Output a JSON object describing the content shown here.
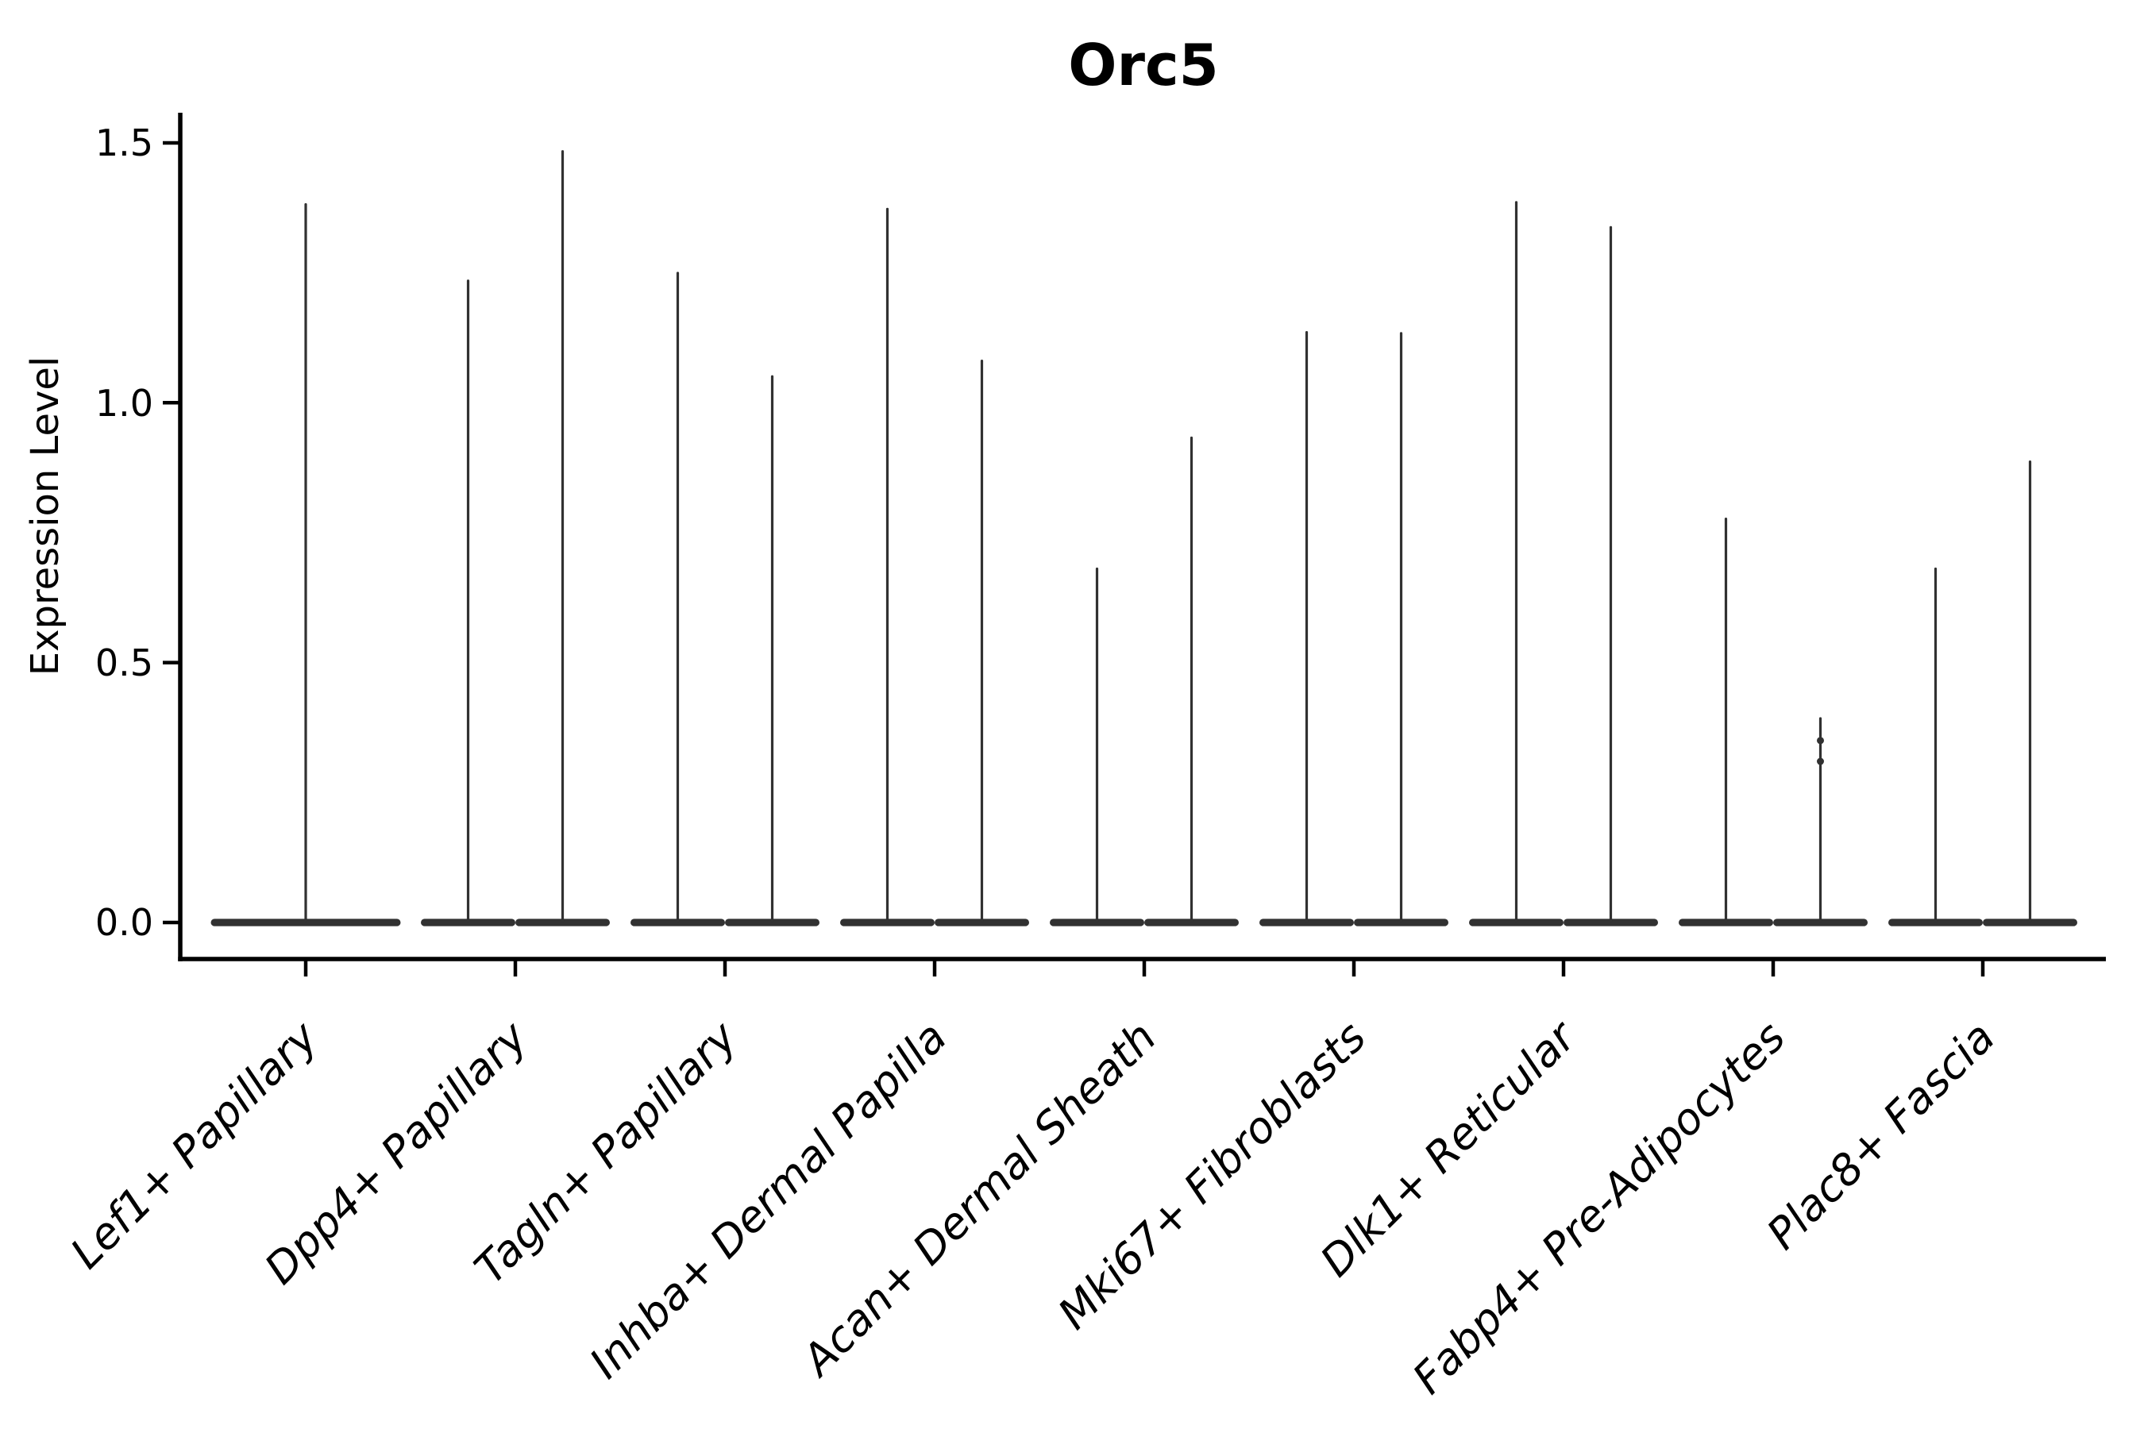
{
  "chart_data": {
    "type": "violin",
    "title": "Orc5",
    "ylabel": "Expression Level",
    "xlabel": "",
    "ylim": [
      -0.07,
      1.56
    ],
    "yticks": [
      0.0,
      0.5,
      1.0,
      1.5
    ],
    "ytick_labels": [
      "0.0",
      "0.5",
      "1.0",
      "1.5"
    ],
    "grid": false,
    "legend_position": "none",
    "categories": [
      "Lef1+ Papillary",
      "Dpp4+ Papillary",
      "Tagln+ Papillary",
      "Inhba+ Dermal Papilla",
      "Acan+ Dermal Sheath",
      "Mki67+ Fibroblasts",
      "Dlk1+ Reticular",
      "Fabp4+ Pre-Adipocytes",
      "Plac8+ Fascia"
    ],
    "groups": [
      {
        "label": "Lef1+ Papillary",
        "violin_max": [
          1.384
        ]
      },
      {
        "label": "Dpp4+ Papillary",
        "violin_max": [
          1.237,
          1.486
        ]
      },
      {
        "label": "Tagln+ Papillary",
        "violin_max": [
          1.252,
          1.053
        ]
      },
      {
        "label": "Inhba+ Dermal Papilla",
        "violin_max": [
          1.375,
          1.083
        ]
      },
      {
        "label": "Acan+ Dermal Sheath",
        "violin_max": [
          0.683,
          0.935
        ]
      },
      {
        "label": "Mki67+ Fibroblasts",
        "violin_max": [
          1.138,
          1.136
        ]
      },
      {
        "label": "Dlk1+ Reticular",
        "violin_max": [
          1.388,
          1.34
        ]
      },
      {
        "label": "Fabp4+ Pre-Adipocytes",
        "violin_max": [
          0.779,
          0.395
        ]
      },
      {
        "label": "Plac8+ Fascia",
        "violin_max": [
          0.683,
          0.889
        ]
      }
    ],
    "baseline_value": 0.0,
    "extra_points": [
      {
        "group_index": 7,
        "violin_index": 1,
        "values": [
          0.35,
          0.31
        ]
      }
    ],
    "violin_color": "#313131",
    "axis_color": "#000000"
  }
}
